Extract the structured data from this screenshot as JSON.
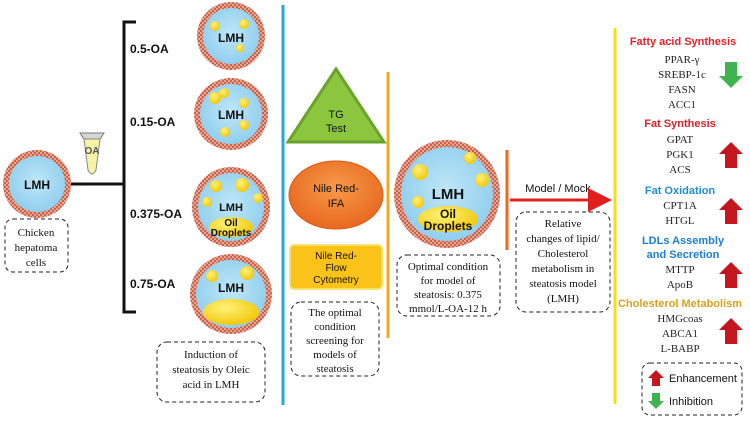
{
  "left": {
    "lmh_label": "LMH",
    "oa_label": "OA",
    "chicken_line1": "Chicken",
    "chicken_line2": "hepatoma",
    "chicken_line3": "cells"
  },
  "concentrations": [
    {
      "label": "0.5-OA",
      "cell": "LMH"
    },
    {
      "label": "0.15-OA",
      "cell": "LMH"
    },
    {
      "label": "0.375-OA",
      "cell": "LMH"
    },
    {
      "label": "0.75-OA",
      "cell": "LMH"
    }
  ],
  "oil_droplets_line1": "Oil",
  "oil_droplets_line2": "Droplets",
  "induction_box": {
    "line1": "Induction of",
    "line2": "steatosis by Oleic",
    "line3": "acid in LMH"
  },
  "tests": {
    "tg_line1": "TG",
    "tg_line2": "Test",
    "nile_ifa_line1": "Nile Red-",
    "nile_ifa_line2": "IFA",
    "nile_fc_line1": "Nile Red-",
    "nile_fc_line2": "Flow",
    "nile_fc_line3": "Cytometry"
  },
  "screening_box": {
    "line1": "The optimal",
    "line2": "condition",
    "line3": "screening for",
    "line4": "models of",
    "line5": "steatosis"
  },
  "optimal_cell": {
    "label": "LMH"
  },
  "optimal_box": {
    "line1": "Optimal condition",
    "line2": "for model of",
    "line3": "steatosis: 0.375",
    "line4": "mmol/L-OA-12 h"
  },
  "model_label": "Model / Mock",
  "relative_box": {
    "line1": "Relative",
    "line2": "changes of lipid/",
    "line3": "Cholesterol",
    "line4": "metabolism in",
    "line5": "steatosis model",
    "line6": "(LMH)"
  },
  "groups": [
    {
      "title": "Fatty acid Synthesis",
      "genes": [
        "PPAR-γ",
        "SREBP-1c",
        "FASN",
        "ACC1"
      ],
      "arrow": "down"
    },
    {
      "title": "Fat Synthesis",
      "genes": [
        "GPAT",
        "PGK1",
        "ACS"
      ],
      "arrow": "up"
    },
    {
      "title": "Fat Oxidation",
      "genes": [
        "CPT1A",
        "HTGL"
      ],
      "arrow": "up"
    },
    {
      "title_line1": "LDLs Assembly",
      "title_line2": "and Secretion",
      "genes": [
        "MTTP",
        "ApoB"
      ],
      "arrow": "up"
    },
    {
      "title": "Cholesterol Metabolism",
      "genes": [
        "HMGcoas",
        "ABCA1",
        "L-BABP"
      ],
      "arrow": "up"
    }
  ],
  "legend": {
    "enhancement": "Enhancement",
    "inhibition": "Inhibition"
  },
  "colors": {
    "fatty_acid": "#e8212a",
    "fat_synthesis": "#d9232a",
    "fat_oxidation": "#1c8fd6",
    "ldl": "#1c7ecf",
    "cholesterol": "#d9a21f",
    "up_arrow": "#c5161d",
    "down_arrow": "#3fb34f"
  }
}
